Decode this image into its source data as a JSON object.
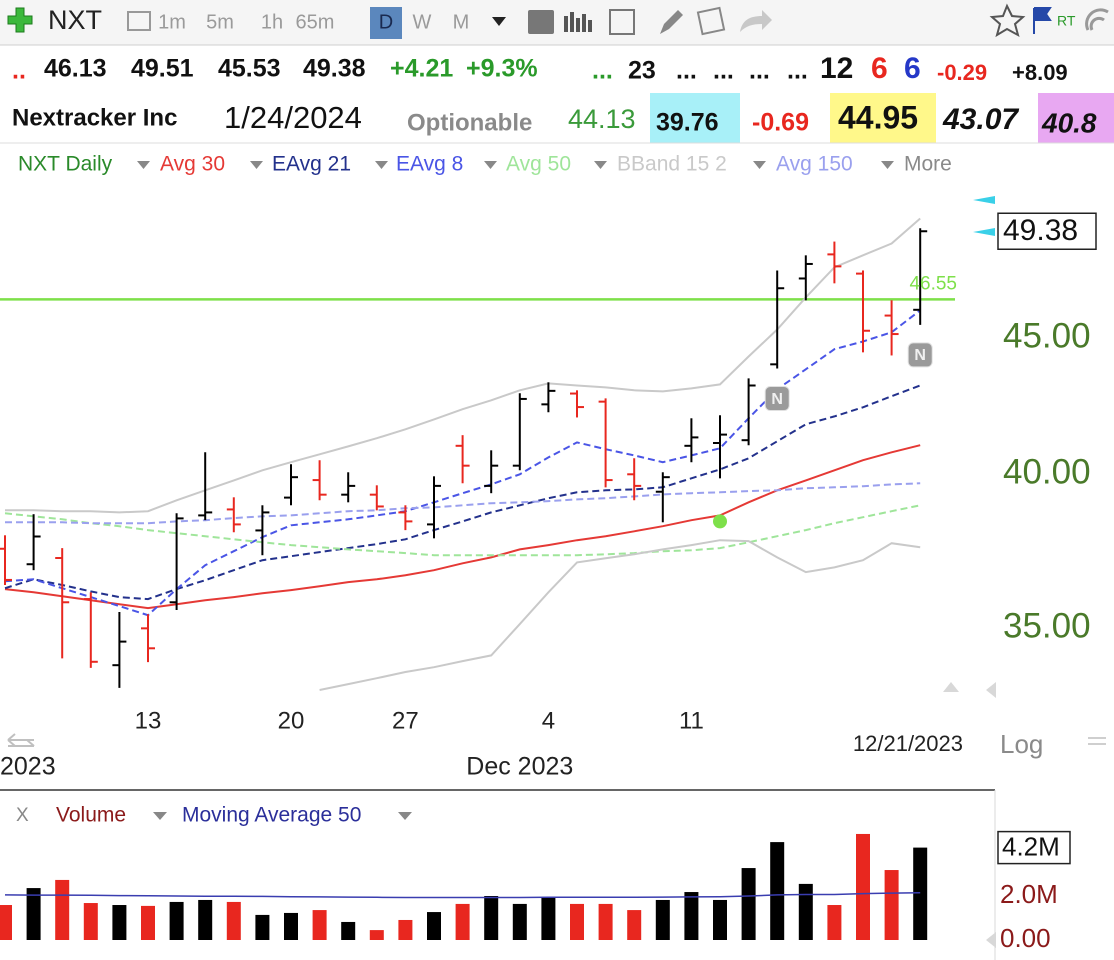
{
  "toolbar": {
    "symbol": "NXT",
    "intervals": [
      "1m",
      "5m",
      "1h",
      "65m",
      "D",
      "W",
      "M"
    ],
    "active_interval": "D",
    "rt_label": "RT"
  },
  "quote": {
    "lead": "..",
    "change": "+4.21",
    "change_percent": "+9.3%",
    "dots_a": "...",
    "count": "23",
    "dots_b": [
      "...",
      "...",
      "...",
      "..."
    ],
    "counts": [
      "12",
      "6",
      "6"
    ],
    "net_a": "-0.29",
    "net_b": "+8.09"
  },
  "info": {
    "name": "Nextracker Inc",
    "date": "1/24/2024",
    "optionable": "Optionable",
    "values": [
      "44.13",
      "39.76",
      "-0.69",
      "44.95",
      "43.07",
      "40.8"
    ]
  },
  "more_label": "More",
  "close_label": "X",
  "chart_data": [
    {
      "type": "ohlc",
      "title": "NXT Daily",
      "log_scale": true,
      "scale_label": "Log",
      "up_color": "#000000",
      "down_color": "#e8271f",
      "categories": [
        "11/6/2023",
        "11/7/2023",
        "11/8/2023",
        "11/9/2023",
        "11/10/2023",
        "11/13/2023",
        "11/14/2023",
        "11/15/2023",
        "11/16/2023",
        "11/17/2023",
        "11/20/2023",
        "11/21/2023",
        "11/22/2023",
        "11/24/2023",
        "11/27/2023",
        "11/28/2023",
        "11/29/2023",
        "11/30/2023",
        "12/1/2023",
        "12/4/2023",
        "12/5/2023",
        "12/6/2023",
        "12/7/2023",
        "12/8/2023",
        "12/11/2023",
        "12/12/2023",
        "12/13/2023",
        "12/14/2023",
        "12/15/2023",
        "12/18/2023",
        "12/19/2023",
        "12/20/2023",
        "12/21/2023"
      ],
      "open": [
        37.5,
        37.0,
        37.2,
        35.9,
        33.9,
        35.0,
        35.8,
        38.6,
        38.8,
        38.1,
        39.2,
        39.8,
        39.3,
        39.3,
        38.7,
        38.3,
        41.0,
        39.6,
        40.3,
        42.5,
        42.9,
        42.6,
        40.0,
        39.4,
        41.0,
        41.1,
        41.2,
        44.0,
        47.4,
        48.4,
        47.6,
        45.9,
        46.13
      ],
      "high": [
        37.94,
        38.64,
        37.52,
        36.11,
        35.5,
        35.43,
        38.67,
        40.77,
        39.21,
        38.94,
        40.35,
        40.49,
        40.07,
        39.62,
        38.94,
        39.93,
        41.38,
        40.84,
        42.91,
        43.32,
        43.02,
        42.72,
        40.56,
        40.07,
        41.99,
        42.1,
        43.47,
        47.73,
        48.36,
        48.94,
        47.73,
        46.51,
        49.51
      ],
      "low": [
        36.34,
        36.81,
        34.1,
        33.82,
        33.24,
        33.99,
        35.56,
        38.44,
        38.04,
        37.29,
        38.94,
        39.11,
        39.04,
        38.77,
        38.11,
        37.84,
        39.69,
        39.35,
        40.14,
        42.21,
        42.02,
        39.55,
        39.11,
        38.37,
        40.42,
        39.86,
        41.02,
        43.84,
        46.51,
        47.2,
        44.46,
        44.34,
        45.53
      ],
      "close": [
        36.5,
        37.9,
        35.8,
        34.0,
        34.6,
        34.4,
        38.5,
        38.7,
        38.3,
        38.7,
        39.9,
        39.3,
        39.6,
        38.9,
        38.4,
        39.6,
        40.3,
        40.3,
        42.7,
        43.0,
        42.4,
        39.8,
        39.6,
        39.9,
        41.3,
        41.4,
        43.2,
        47.0,
        48.0,
        47.9,
        45.3,
        45.17,
        49.38
      ],
      "ylim": [
        32.75,
        51.4
      ],
      "yticks": [
        {
          "value": 35,
          "label": "35.00"
        },
        {
          "value": 40,
          "label": "40.00"
        },
        {
          "value": 45,
          "label": "45.00"
        }
      ],
      "xticks": [
        {
          "value": "11/13/2023",
          "label": "13"
        },
        {
          "value": "11/20/2023",
          "label": "20"
        },
        {
          "value": "11/27/2023",
          "label": "27"
        },
        {
          "value": "12/4/2023",
          "label": "4"
        },
        {
          "value": "12/11/2023",
          "label": "11"
        }
      ],
      "period_labels": [
        {
          "value": "11/6/2023",
          "label": "2023"
        },
        {
          "value": "12/1/2023",
          "label": "Dec 2023"
        }
      ],
      "series": [
        {
          "name": "Avg 30",
          "color": "#e53935",
          "dashed": false,
          "values": [
            36.21,
            36.11,
            35.99,
            35.86,
            35.74,
            35.62,
            35.74,
            35.86,
            35.96,
            36.08,
            36.18,
            36.3,
            36.43,
            36.52,
            36.65,
            36.81,
            37.03,
            37.22,
            37.48,
            37.62,
            37.78,
            37.91,
            38.07,
            38.24,
            38.44,
            38.6,
            39.04,
            39.45,
            39.79,
            40.14,
            40.49,
            40.77,
            41.02
          ]
        },
        {
          "name": "EAvg 21",
          "color": "#23318c",
          "dashed": true,
          "values": [
            36.24,
            36.52,
            36.34,
            36.14,
            35.96,
            35.9,
            36.21,
            36.49,
            36.81,
            37.13,
            37.26,
            37.39,
            37.52,
            37.65,
            37.81,
            38.11,
            38.4,
            38.7,
            38.94,
            39.18,
            39.38,
            39.45,
            39.48,
            39.55,
            39.86,
            40.17,
            40.56,
            41.16,
            41.77,
            42.06,
            42.39,
            42.8,
            43.2
          ]
        },
        {
          "name": "EAvg 8",
          "color": "#4a55e6",
          "dashed": true,
          "values": [
            36.46,
            36.52,
            36.24,
            35.96,
            35.68,
            35.4,
            36.21,
            36.97,
            37.42,
            37.88,
            38.27,
            38.37,
            38.47,
            38.6,
            38.74,
            39.04,
            39.35,
            39.65,
            40.0,
            40.59,
            41.12,
            40.88,
            40.66,
            40.42,
            40.66,
            40.91,
            41.99,
            43.06,
            43.81,
            44.58,
            44.88,
            45.24,
            46.11
          ]
        },
        {
          "name": "Avg 50",
          "color": "#9fe59a",
          "dashed": true,
          "values": [
            38.67,
            38.57,
            38.47,
            38.34,
            38.24,
            38.11,
            38.01,
            37.91,
            37.81,
            37.71,
            37.62,
            37.55,
            37.48,
            37.42,
            37.36,
            37.29,
            37.29,
            37.29,
            37.29,
            37.29,
            37.29,
            37.32,
            37.36,
            37.42,
            37.45,
            37.52,
            37.71,
            37.91,
            38.11,
            38.34,
            38.54,
            38.74,
            38.94
          ]
        },
        {
          "name": "BBand 15 2",
          "color": "#c9c9c9",
          "dashed": false,
          "upper": [
            38.77,
            38.77,
            38.74,
            38.74,
            38.7,
            38.74,
            39.11,
            39.45,
            39.79,
            40.14,
            40.42,
            40.7,
            40.98,
            41.27,
            41.59,
            41.95,
            42.32,
            42.65,
            43.02,
            43.28,
            43.2,
            43.13,
            43.02,
            42.98,
            43.09,
            43.24,
            44.3,
            45.35,
            46.63,
            47.86,
            48.36,
            48.86,
            49.93
          ],
          "lower": [
            null,
            null,
            null,
            null,
            null,
            null,
            null,
            null,
            null,
            null,
            null,
            33.18,
            33.35,
            33.52,
            33.7,
            33.84,
            34.02,
            34.19,
            35.13,
            36.11,
            37.06,
            37.19,
            37.32,
            37.48,
            37.62,
            37.78,
            37.75,
            37.22,
            36.75,
            36.9,
            37.13,
            37.68,
            37.55
          ]
        },
        {
          "name": "Avg 150",
          "color": "#9aa0ee",
          "dashed": true,
          "values": [
            38.37,
            38.37,
            38.37,
            38.34,
            38.34,
            38.34,
            38.4,
            38.44,
            38.51,
            38.57,
            38.6,
            38.67,
            38.74,
            38.77,
            38.84,
            38.87,
            38.94,
            39.01,
            39.04,
            39.08,
            39.14,
            39.18,
            39.24,
            39.31,
            39.35,
            39.38,
            39.42,
            39.45,
            39.52,
            39.55,
            39.59,
            39.65,
            39.69
          ]
        }
      ],
      "horizontal_lines": [
        {
          "value": 46.55,
          "color": "#7ee04a"
        }
      ],
      "markers": [
        {
          "category": "12/12/2023",
          "value": 38.4,
          "color": "#7ee04a"
        }
      ],
      "news": [
        {
          "category": "12/14/2023",
          "label": "N"
        },
        {
          "category": "12/21/2023",
          "label": "N"
        }
      ]
    },
    {
      "type": "bar",
      "ylim": [
        0,
        5000000
      ],
      "yticks": [
        {
          "value": 0,
          "label": "0.00"
        },
        {
          "value": 2000000,
          "label": "2.0M"
        }
      ],
      "series": [
        {
          "name": "Volume",
          "values": [
            1590000,
            2360000,
            2730000,
            1680000,
            1590000,
            1550000,
            1730000,
            1820000,
            1730000,
            1140000,
            1230000,
            1360000,
            820000,
            450000,
            910000,
            1270000,
            1640000,
            2000000,
            1640000,
            1910000,
            1640000,
            1640000,
            1360000,
            1820000,
            2180000,
            1820000,
            3270000,
            4450000,
            2550000,
            1590000,
            4820000,
            3180000,
            4200000
          ],
          "value_labels": [
            null,
            null,
            null,
            null,
            null,
            null,
            null,
            null,
            null,
            null,
            null,
            null,
            null,
            null,
            null,
            null,
            null,
            null,
            null,
            null,
            null,
            null,
            null,
            null,
            null,
            null,
            null,
            null,
            null,
            null,
            null,
            null,
            "4.2M"
          ]
        },
        {
          "name": "Moving Average 50",
          "color": "#3a3db0",
          "values": [
            2050000,
            2040000,
            2040000,
            2030000,
            2020000,
            2010000,
            2000000,
            1990000,
            1990000,
            1980000,
            1970000,
            1960000,
            1950000,
            1940000,
            1930000,
            1930000,
            1930000,
            1930000,
            1930000,
            1940000,
            1940000,
            1940000,
            1940000,
            1950000,
            1960000,
            1970000,
            2000000,
            2050000,
            2070000,
            2070000,
            2110000,
            2130000,
            2150000
          ]
        }
      ]
    }
  ]
}
